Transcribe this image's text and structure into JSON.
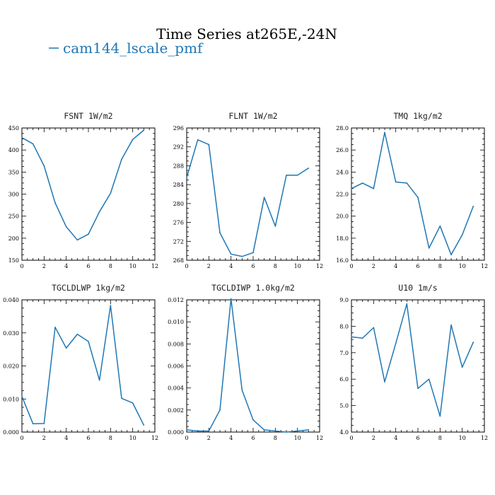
{
  "figure": {
    "title": "Time Series at265E,-24N",
    "legend_label": "cam144_lscale_pmf",
    "line_color": "#1f77b4"
  },
  "chart_data": [
    {
      "type": "line",
      "title": "FSNT   1W/m2",
      "series": [
        {
          "name": "cam144_lscale_pmf",
          "x": [
            0,
            1,
            2,
            3,
            4,
            5,
            6,
            7,
            8,
            9,
            10,
            11
          ],
          "values": [
            428,
            414,
            364,
            280,
            226,
            196,
            209,
            260,
            302,
            379,
            424,
            445
          ]
        }
      ],
      "xlim": [
        0,
        12
      ],
      "ylim": [
        150,
        450
      ],
      "x_ticks": [
        0,
        2,
        4,
        6,
        8,
        10,
        12
      ],
      "y_ticks": [
        150,
        200,
        250,
        300,
        350,
        400,
        450
      ],
      "y_tick_labels": [
        "150",
        "200",
        "250",
        "300",
        "350",
        "400",
        "450"
      ]
    },
    {
      "type": "line",
      "title": "FLNT   1W/m2",
      "series": [
        {
          "name": "cam144_lscale_pmf",
          "x": [
            0,
            1,
            2,
            3,
            4,
            5,
            6,
            7,
            8,
            9,
            10,
            11
          ],
          "values": [
            285.5,
            293.5,
            292.5,
            273.8,
            269.3,
            268.8,
            269.6,
            281.3,
            275.2,
            286.0,
            286.0,
            287.5
          ]
        }
      ],
      "xlim": [
        0,
        12
      ],
      "ylim": [
        268,
        296
      ],
      "x_ticks": [
        0,
        2,
        4,
        6,
        8,
        10,
        12
      ],
      "y_ticks": [
        268,
        272,
        276,
        280,
        284,
        288,
        292,
        296
      ],
      "y_tick_labels": [
        "268",
        "272",
        "276",
        "280",
        "284",
        "288",
        "292",
        "296"
      ]
    },
    {
      "type": "line",
      "title": "TMQ   1kg/m2",
      "series": [
        {
          "name": "cam144_lscale_pmf",
          "x": [
            0,
            1,
            2,
            3,
            4,
            5,
            6,
            7,
            8,
            9,
            10,
            11
          ],
          "values": [
            22.5,
            23.0,
            22.5,
            27.6,
            23.1,
            23.0,
            21.7,
            17.1,
            19.1,
            16.5,
            18.3,
            20.9
          ]
        }
      ],
      "xlim": [
        0,
        12
      ],
      "ylim": [
        16,
        28
      ],
      "x_ticks": [
        0,
        2,
        4,
        6,
        8,
        10,
        12
      ],
      "y_ticks": [
        16,
        18,
        20,
        22,
        24,
        26,
        28
      ],
      "y_tick_labels": [
        "16.0",
        "18.0",
        "20.0",
        "22.0",
        "24.0",
        "26.0",
        "28.0"
      ]
    },
    {
      "type": "line",
      "title": "TGCLDLWP   1kg/m2",
      "series": [
        {
          "name": "cam144_lscale_pmf",
          "x": [
            0,
            1,
            2,
            3,
            4,
            5,
            6,
            7,
            8,
            9,
            10,
            11
          ],
          "values": [
            0.0108,
            0.0025,
            0.0026,
            0.0317,
            0.0254,
            0.0296,
            0.0274,
            0.0157,
            0.0383,
            0.0102,
            0.0088,
            0.0021
          ]
        }
      ],
      "xlim": [
        0,
        12
      ],
      "ylim": [
        0,
        0.04
      ],
      "x_ticks": [
        0,
        2,
        4,
        6,
        8,
        10,
        12
      ],
      "y_ticks": [
        0,
        0.01,
        0.02,
        0.03,
        0.04
      ],
      "y_tick_labels": [
        "0.000",
        "0.010",
        "0.020",
        "0.030",
        "0.040"
      ]
    },
    {
      "type": "line",
      "title": "TGCLDIWP   1.0kg/m2",
      "series": [
        {
          "name": "cam144_lscale_pmf",
          "x": [
            0,
            1,
            2,
            3,
            4,
            5,
            6,
            7,
            8,
            9,
            10,
            11
          ],
          "values": [
            0.0002,
            0.0001,
            0.0001,
            0.002,
            0.0121,
            0.0038,
            0.0011,
            0.0002,
            0.0001,
            0.0,
            0.0001,
            0.0002
          ]
        }
      ],
      "xlim": [
        0,
        12
      ],
      "ylim": [
        0,
        0.012
      ],
      "x_ticks": [
        0,
        2,
        4,
        6,
        8,
        10,
        12
      ],
      "y_ticks": [
        0,
        0.002,
        0.004,
        0.006,
        0.008,
        0.01,
        0.012
      ],
      "y_tick_labels": [
        "0.000",
        "0.002",
        "0.004",
        "0.006",
        "0.008",
        "0.010",
        "0.012"
      ]
    },
    {
      "type": "line",
      "title": "U10   1m/s",
      "series": [
        {
          "name": "cam144_lscale_pmf",
          "x": [
            0,
            1,
            2,
            3,
            4,
            5,
            6,
            7,
            8,
            9,
            10,
            11
          ],
          "values": [
            7.6,
            7.55,
            7.95,
            5.9,
            7.35,
            8.85,
            5.65,
            6.0,
            4.6,
            8.05,
            6.45,
            7.4
          ]
        }
      ],
      "xlim": [
        0,
        12
      ],
      "ylim": [
        4,
        9
      ],
      "x_ticks": [
        0,
        2,
        4,
        6,
        8,
        10,
        12
      ],
      "y_ticks": [
        4,
        5,
        6,
        7,
        8,
        9
      ],
      "y_tick_labels": [
        "4.0",
        "5.0",
        "6.0",
        "7.0",
        "8.0",
        "9.0"
      ]
    }
  ]
}
